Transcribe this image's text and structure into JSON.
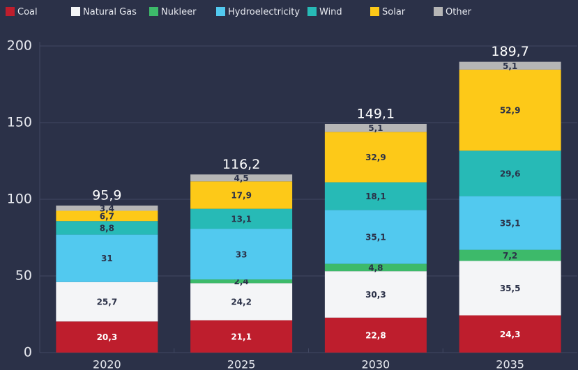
{
  "chart_data": {
    "type": "stacked_bar",
    "categories": [
      "2020",
      "2025",
      "2030",
      "2035"
    ],
    "series": [
      {
        "name": "Coal",
        "color": "#be1e2d",
        "values": [
          20.3,
          21.1,
          22.8,
          24.3
        ],
        "value_labels": [
          "20,3",
          "21,1",
          "22,8",
          "24,3"
        ]
      },
      {
        "name": "Natural Gas",
        "color": "#f4f5f7",
        "values": [
          25.7,
          24.2,
          30.3,
          35.5
        ],
        "value_labels": [
          "25,7",
          "24,2",
          "30,3",
          "35,5"
        ]
      },
      {
        "name": "Nukleer",
        "color": "#3dba6a",
        "values": [
          null,
          2.4,
          4.8,
          7.2
        ],
        "value_labels": [
          null,
          "2,4",
          "4,8",
          "7,2"
        ]
      },
      {
        "name": "Hydroelectricity",
        "color": "#52c9ef",
        "values": [
          31,
          33,
          35.1,
          35.1
        ],
        "value_labels": [
          "31",
          "33",
          "35,1",
          "35,1"
        ]
      },
      {
        "name": "Wind",
        "color": "#27bab6",
        "values": [
          8.8,
          13.1,
          18.1,
          29.6
        ],
        "value_labels": [
          "8,8",
          "13,1",
          "18,1",
          "29,6"
        ]
      },
      {
        "name": "Solar",
        "color": "#fdc918",
        "values": [
          6.7,
          17.9,
          32.9,
          52.9
        ],
        "value_labels": [
          "6,7",
          "17,9",
          "32,9",
          "52,9"
        ]
      },
      {
        "name": "Other",
        "color": "#b6b6b6",
        "values": [
          3.4,
          4.5,
          5.1,
          5.1
        ],
        "value_labels": [
          "3,4",
          "4,5",
          "5,1",
          "5,1"
        ]
      }
    ],
    "totals": [
      95.9,
      116.2,
      149.1,
      189.7
    ],
    "total_labels": [
      "95,9",
      "116,2",
      "149,1",
      "189,7"
    ],
    "ylim": [
      0,
      200
    ],
    "yticks": [
      0,
      50,
      100,
      150,
      200
    ],
    "grid": true
  }
}
